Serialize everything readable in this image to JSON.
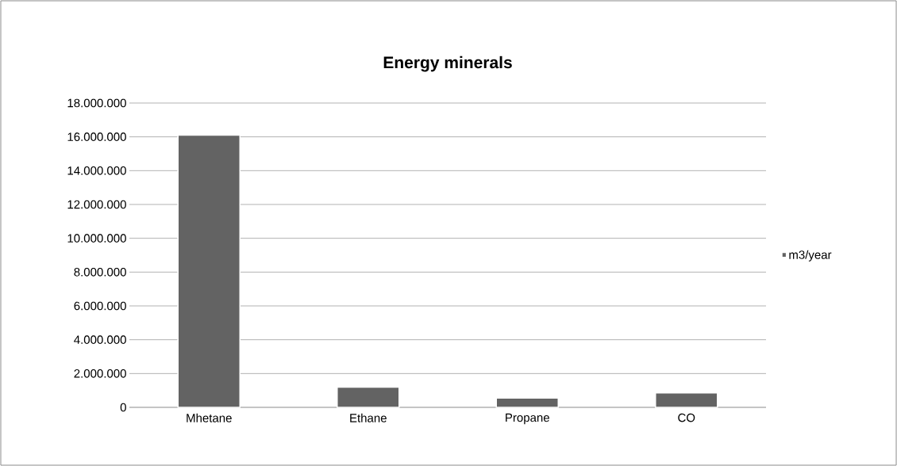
{
  "chart_data": {
    "type": "bar",
    "title": "Energy minerals",
    "categories": [
      "Mhetane",
      "Ethane",
      "Propane",
      "CO"
    ],
    "series": [
      {
        "name": "m3/year",
        "color": "#636363",
        "values": [
          16100000,
          1200000,
          550000,
          850000
        ]
      }
    ],
    "ylim": [
      0,
      18000000
    ],
    "yticks": [
      {
        "value": 0,
        "label": "0"
      },
      {
        "value": 2000000,
        "label": "2.000.000"
      },
      {
        "value": 4000000,
        "label": "4.000.000"
      },
      {
        "value": 6000000,
        "label": "6.000.000"
      },
      {
        "value": 8000000,
        "label": "8.000.000"
      },
      {
        "value": 10000000,
        "label": "10.000.000"
      },
      {
        "value": 12000000,
        "label": "12.000.000"
      },
      {
        "value": 14000000,
        "label": "14.000.000"
      },
      {
        "value": 16000000,
        "label": "16.000.000"
      },
      {
        "value": 18000000,
        "label": "18.000.000"
      }
    ],
    "grid": "y",
    "legend": "right"
  }
}
